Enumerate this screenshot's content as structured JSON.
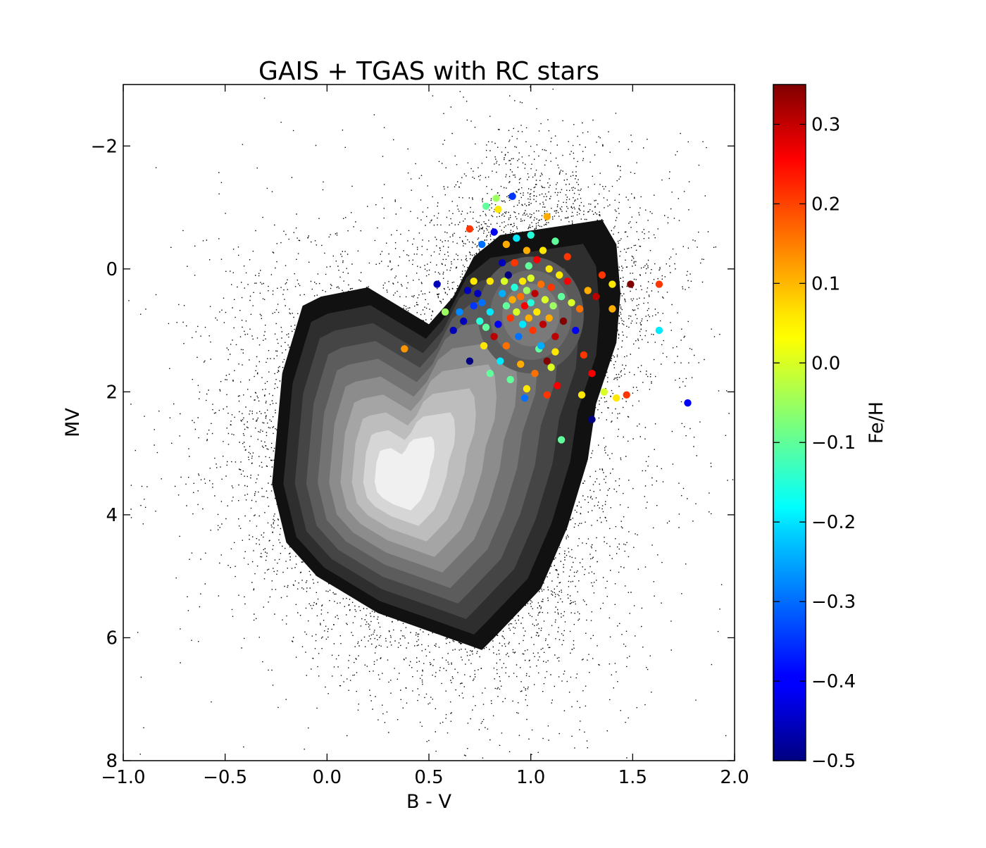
{
  "chart_data": {
    "type": "scatter",
    "title": "GAIS + TGAS with RC stars",
    "xlabel": "B - V",
    "ylabel": "MV",
    "xlim": [
      -1.0,
      2.0
    ],
    "ylim": [
      8,
      -3
    ],
    "y_inverted": true,
    "x_ticks": [
      -1.0,
      -0.5,
      0.0,
      0.5,
      1.0,
      1.5,
      2.0
    ],
    "x_tick_labels": [
      "−1.0",
      "−0.5",
      "0.0",
      "0.5",
      "1.0",
      "1.5",
      "2.0"
    ],
    "y_ticks": [
      -2,
      0,
      2,
      4,
      6,
      8
    ],
    "y_tick_labels": [
      "−2",
      "0",
      "2",
      "4",
      "6",
      "8"
    ],
    "grid": false,
    "colorbar": {
      "label": "Fe/H",
      "colormap": "jet",
      "range": [
        -0.5,
        0.35
      ],
      "ticks": [
        -0.5,
        -0.4,
        -0.3,
        -0.2,
        -0.1,
        0.0,
        0.1,
        0.2,
        0.3
      ],
      "tick_labels": [
        "−0.5",
        "−0.4",
        "−0.3",
        "−0.2",
        "−0.1",
        "0.0",
        "0.1",
        "0.2",
        "0.3"
      ]
    },
    "background": {
      "description": "dense black point cloud of GAIA+TGAS stars with grayscale density contours",
      "density_peak": [
        0.35,
        3.5
      ],
      "secondary_peak": [
        1.0,
        0.8
      ],
      "contour_fill_colors": [
        "#111111",
        "#2e2e2e",
        "#454545",
        "#5c5c5c",
        "#737373",
        "#8c8c8c",
        "#a5a5a5",
        "#bdbdbd",
        "#d6d6d6",
        "#f0f0f0"
      ]
    },
    "series": [
      {
        "name": "RC stars",
        "points": [
          [
            0.54,
            0.25,
            -0.45
          ],
          [
            0.38,
            1.3,
            0.12
          ],
          [
            0.58,
            0.7,
            -0.05
          ],
          [
            0.62,
            1.0,
            -0.45
          ],
          [
            0.65,
            0.7,
            -0.28
          ],
          [
            0.67,
            0.85,
            -0.45
          ],
          [
            0.7,
            1.5,
            -0.5
          ],
          [
            0.72,
            0.2,
            0.05
          ],
          [
            0.74,
            0.4,
            -0.45
          ],
          [
            0.76,
            0.55,
            -0.3
          ],
          [
            0.78,
            0.95,
            -0.1
          ],
          [
            0.8,
            0.2,
            0.05
          ],
          [
            0.8,
            0.7,
            -0.2
          ],
          [
            0.82,
            1.1,
            0.3
          ],
          [
            0.84,
            0.9,
            -0.4
          ],
          [
            0.86,
            0.4,
            -0.25
          ],
          [
            0.87,
            0.2,
            0.0
          ],
          [
            0.88,
            0.6,
            -0.1
          ],
          [
            0.89,
            0.1,
            -0.5
          ],
          [
            0.9,
            0.8,
            0.2
          ],
          [
            0.91,
            0.5,
            0.1
          ],
          [
            0.92,
            0.3,
            -0.15
          ],
          [
            0.93,
            0.7,
            0.0
          ],
          [
            0.94,
            1.1,
            -0.3
          ],
          [
            0.95,
            0.45,
            0.15
          ],
          [
            0.96,
            0.2,
            0.05
          ],
          [
            0.96,
            0.9,
            -0.2
          ],
          [
            0.97,
            0.6,
            0.25
          ],
          [
            0.98,
            0.35,
            -0.05
          ],
          [
            0.99,
            0.8,
            0.1
          ],
          [
            1.0,
            0.15,
            0.0
          ],
          [
            1.0,
            0.55,
            -0.15
          ],
          [
            1.01,
            1.0,
            0.2
          ],
          [
            1.02,
            0.4,
            0.3
          ],
          [
            1.03,
            0.7,
            0.05
          ],
          [
            1.04,
            1.3,
            -0.1
          ],
          [
            1.05,
            0.25,
            0.15
          ],
          [
            1.06,
            0.9,
            0.3
          ],
          [
            1.07,
            0.5,
            0.0
          ],
          [
            1.08,
            1.5,
            0.35
          ],
          [
            1.09,
            0.8,
            0.1
          ],
          [
            1.1,
            0.3,
            0.2
          ],
          [
            1.11,
            0.6,
            -0.05
          ],
          [
            1.12,
            1.1,
            0.3
          ],
          [
            1.13,
            1.9,
            0.25
          ],
          [
            1.14,
            0.1,
            0.05
          ],
          [
            1.15,
            0.45,
            -0.1
          ],
          [
            1.16,
            0.85,
            0.35
          ],
          [
            1.18,
            0.2,
            0.25
          ],
          [
            1.2,
            0.55,
            0.0
          ],
          [
            1.22,
            1.0,
            -0.4
          ],
          [
            1.24,
            0.65,
            0.15
          ],
          [
            1.26,
            1.4,
            0.2
          ],
          [
            1.28,
            0.35,
            0.1
          ],
          [
            1.3,
            1.7,
            0.25
          ],
          [
            1.32,
            0.45,
            0.3
          ],
          [
            1.35,
            0.1,
            0.2
          ],
          [
            1.4,
            0.25,
            0.05
          ],
          [
            1.4,
            0.65,
            0.1
          ],
          [
            1.49,
            0.25,
            0.35
          ],
          [
            1.63,
            0.25,
            0.2
          ],
          [
            1.63,
            1.0,
            -0.2
          ],
          [
            1.77,
            2.18,
            -0.4
          ],
          [
            1.3,
            2.45,
            -0.5
          ],
          [
            1.15,
            2.78,
            -0.1
          ],
          [
            0.83,
            -1.15,
            -0.05
          ],
          [
            0.91,
            -1.18,
            -0.35
          ],
          [
            0.78,
            -1.02,
            -0.1
          ],
          [
            0.84,
            -0.97,
            0.05
          ],
          [
            1.08,
            -0.85,
            0.1
          ],
          [
            0.69,
            0.35,
            -0.45
          ],
          [
            0.72,
            0.6,
            -0.35
          ],
          [
            0.75,
            0.85,
            -0.15
          ],
          [
            0.77,
            1.25,
            0.05
          ],
          [
            0.8,
            1.7,
            -0.1
          ],
          [
            0.85,
            1.5,
            -0.2
          ],
          [
            0.88,
            1.25,
            0.15
          ],
          [
            0.9,
            1.8,
            -0.1
          ],
          [
            0.95,
            1.55,
            0.1
          ],
          [
            0.98,
            1.95,
            0.05
          ],
          [
            1.02,
            1.7,
            0.15
          ],
          [
            1.05,
            1.25,
            -0.25
          ],
          [
            1.1,
            1.6,
            0.0
          ],
          [
            1.12,
            1.35,
            0.05
          ],
          [
            0.97,
            2.1,
            -0.3
          ],
          [
            1.08,
            2.05,
            0.2
          ],
          [
            1.25,
            2.05,
            0.05
          ],
          [
            1.36,
            2.0,
            0.0
          ],
          [
            1.42,
            2.1,
            0.05
          ],
          [
            1.47,
            2.05,
            0.2
          ],
          [
            0.7,
            -0.65,
            0.2
          ],
          [
            0.76,
            -0.4,
            -0.3
          ],
          [
            0.82,
            -0.6,
            -0.4
          ],
          [
            0.88,
            -0.4,
            0.1
          ],
          [
            0.93,
            -0.5,
            -0.2
          ],
          [
            0.98,
            -0.3,
            0.1
          ],
          [
            1.0,
            -0.55,
            -0.15
          ],
          [
            1.06,
            -0.3,
            0.05
          ],
          [
            1.12,
            -0.45,
            -0.1
          ],
          [
            1.18,
            -0.2,
            0.2
          ],
          [
            0.86,
            -0.1,
            -0.45
          ],
          [
            0.92,
            -0.1,
            0.2
          ],
          [
            0.99,
            -0.05,
            -0.1
          ],
          [
            1.03,
            -0.15,
            0.25
          ],
          [
            1.09,
            0.0,
            0.05
          ]
        ]
      }
    ]
  }
}
